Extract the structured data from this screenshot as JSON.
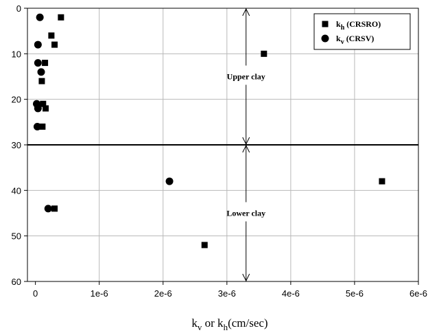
{
  "chart_data": {
    "type": "scatter",
    "title": "",
    "xlabel": {
      "k1": "k",
      "s1": "v",
      "mid": " or k",
      "s2": "h",
      "unit": "(cm/sec)"
    },
    "ylabel": "",
    "xlim": [
      -1.25e-07,
      6e-06
    ],
    "ylim": [
      0,
      60
    ],
    "y_inverted": true,
    "x_ticks": [
      "0",
      "1e-6",
      "2e-6",
      "3e-6",
      "4e-6",
      "5e-6",
      "6e-6"
    ],
    "x_tick_values": [
      0,
      1e-06,
      2e-06,
      3e-06,
      4e-06,
      5e-06,
      6e-06
    ],
    "y_ticks": [
      "0",
      "10",
      "20",
      "30",
      "40",
      "50",
      "60"
    ],
    "y_tick_values": [
      0,
      10,
      20,
      30,
      40,
      50,
      60
    ],
    "grid": true,
    "legend_position": "top-right",
    "series": [
      {
        "name_main": "k",
        "name_sub": "h",
        "name_rest": " (CRSRO)",
        "marker": "square",
        "color": "#000000",
        "points": [
          [
            4e-07,
            2
          ],
          [
            2.5e-07,
            6
          ],
          [
            3e-07,
            8
          ],
          [
            3.58e-06,
            10
          ],
          [
            1.5e-07,
            12
          ],
          [
            1e-07,
            16
          ],
          [
            1.2e-07,
            21
          ],
          [
            1.6e-07,
            22
          ],
          [
            1.1e-07,
            26
          ],
          [
            5.43e-06,
            38
          ],
          [
            3e-07,
            44
          ],
          [
            2.65e-06,
            52
          ]
        ]
      },
      {
        "name_main": "k",
        "name_sub": "v",
        "name_rest": " (CRSV)",
        "marker": "circle",
        "color": "#000000",
        "points": [
          [
            7e-08,
            2
          ],
          [
            4e-08,
            8
          ],
          [
            4e-08,
            12
          ],
          [
            9e-08,
            14
          ],
          [
            2e-08,
            21
          ],
          [
            4e-08,
            22
          ],
          [
            3e-08,
            26
          ],
          [
            2.1e-06,
            38
          ],
          [
            2e-07,
            44
          ]
        ]
      }
    ],
    "reference_line": {
      "y": 30
    },
    "annotations": [
      {
        "text": "Upper clay",
        "x": 3.3e-06,
        "y_from": 0,
        "y_to": 30
      },
      {
        "text": "Lower clay",
        "x": 3.3e-06,
        "y_from": 30,
        "y_to": 60
      }
    ]
  }
}
